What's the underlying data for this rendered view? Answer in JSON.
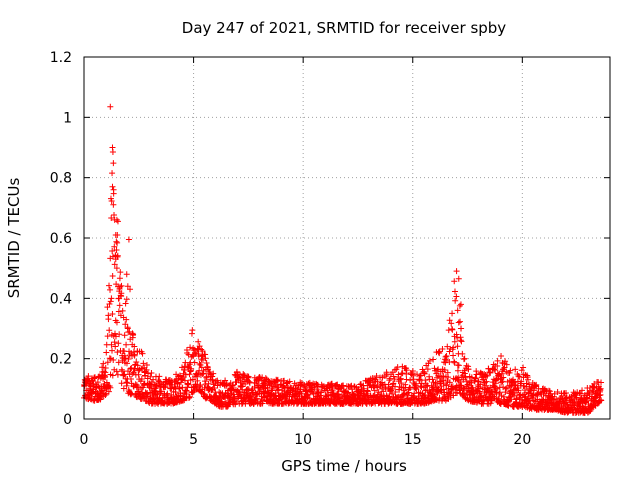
{
  "chart_data": {
    "type": "scatter",
    "title": "Day 247 of 2021, SRMTID for receiver spby",
    "xlabel": "GPS time / hours",
    "ylabel": "SRMTID / TECUs",
    "xlim": [
      0,
      24
    ],
    "ylim": [
      0,
      1.2
    ],
    "x_ticks": [
      0,
      5,
      10,
      15,
      20
    ],
    "x_tick_labels": [
      "0",
      "5",
      "10",
      "15",
      "20"
    ],
    "y_ticks": [
      0,
      0.2,
      0.4,
      0.6,
      0.8,
      1.0,
      1.2
    ],
    "y_tick_labels": [
      "0",
      "0.2",
      "0.4",
      "0.6",
      "0.8",
      "1",
      "1.2"
    ],
    "grid": true,
    "marker": "plus",
    "series": [
      {
        "name": "SRMTID",
        "color": "#ff0000",
        "profile_x": [
          0,
          0.5,
          1.0,
          1.2,
          1.3,
          1.4,
          1.6,
          1.8,
          2.0,
          2.2,
          2.5,
          2.8,
          3.0,
          3.5,
          4.0,
          4.5,
          4.8,
          5.0,
          5.2,
          5.5,
          5.8,
          6.2,
          6.5,
          7.0,
          7.5,
          8.0,
          9.0,
          10.0,
          11.0,
          12.0,
          13.0,
          13.5,
          14.0,
          14.5,
          15.0,
          15.5,
          16.0,
          16.5,
          16.9,
          17.1,
          17.3,
          17.6,
          18.0,
          18.5,
          19.0,
          19.5,
          20.0,
          20.5,
          21.0,
          21.5,
          22.0,
          22.5,
          23.0,
          23.3,
          23.6
        ],
        "profile_low": [
          0.07,
          0.06,
          0.07,
          0.1,
          0.14,
          0.16,
          0.14,
          0.1,
          0.08,
          0.08,
          0.07,
          0.06,
          0.05,
          0.05,
          0.05,
          0.06,
          0.07,
          0.09,
          0.1,
          0.07,
          0.06,
          0.04,
          0.04,
          0.05,
          0.05,
          0.05,
          0.05,
          0.05,
          0.05,
          0.05,
          0.05,
          0.05,
          0.05,
          0.05,
          0.05,
          0.05,
          0.06,
          0.06,
          0.08,
          0.09,
          0.07,
          0.06,
          0.05,
          0.05,
          0.05,
          0.04,
          0.04,
          0.03,
          0.03,
          0.03,
          0.02,
          0.02,
          0.02,
          0.04,
          0.06
        ],
        "profile_high": [
          0.16,
          0.14,
          0.2,
          0.7,
          0.9,
          0.65,
          0.55,
          0.45,
          0.4,
          0.3,
          0.25,
          0.2,
          0.16,
          0.14,
          0.13,
          0.18,
          0.26,
          0.31,
          0.28,
          0.22,
          0.16,
          0.12,
          0.13,
          0.16,
          0.15,
          0.14,
          0.13,
          0.12,
          0.12,
          0.11,
          0.13,
          0.15,
          0.17,
          0.18,
          0.16,
          0.17,
          0.22,
          0.24,
          0.47,
          0.4,
          0.22,
          0.17,
          0.16,
          0.18,
          0.22,
          0.16,
          0.18,
          0.12,
          0.1,
          0.09,
          0.09,
          0.09,
          0.11,
          0.12,
          0.13
        ],
        "outliers": [
          [
            1.2,
            1.035
          ],
          [
            1.3,
            0.9
          ],
          [
            1.32,
            0.885
          ],
          [
            1.34,
            0.848
          ],
          [
            1.28,
            0.815
          ],
          [
            1.3,
            0.77
          ],
          [
            1.35,
            0.76
          ],
          [
            1.4,
            0.66
          ],
          [
            1.5,
            0.66
          ],
          [
            1.55,
            0.655
          ],
          [
            1.52,
            0.61
          ],
          [
            1.45,
            0.61
          ],
          [
            2.05,
            0.595
          ],
          [
            1.45,
            0.53
          ],
          [
            1.5,
            0.5
          ],
          [
            1.95,
            0.48
          ],
          [
            2.0,
            0.44
          ],
          [
            2.1,
            0.43
          ],
          [
            1.6,
            0.4
          ],
          [
            1.25,
            0.4
          ],
          [
            1.22,
            0.39
          ],
          [
            17.0,
            0.49
          ],
          [
            17.1,
            0.465
          ],
          [
            17.2,
            0.38
          ],
          [
            17.15,
            0.375
          ],
          [
            17.05,
            0.36
          ],
          [
            17.1,
            0.32
          ],
          [
            17.2,
            0.3
          ],
          [
            17.0,
            0.28
          ]
        ]
      }
    ]
  }
}
